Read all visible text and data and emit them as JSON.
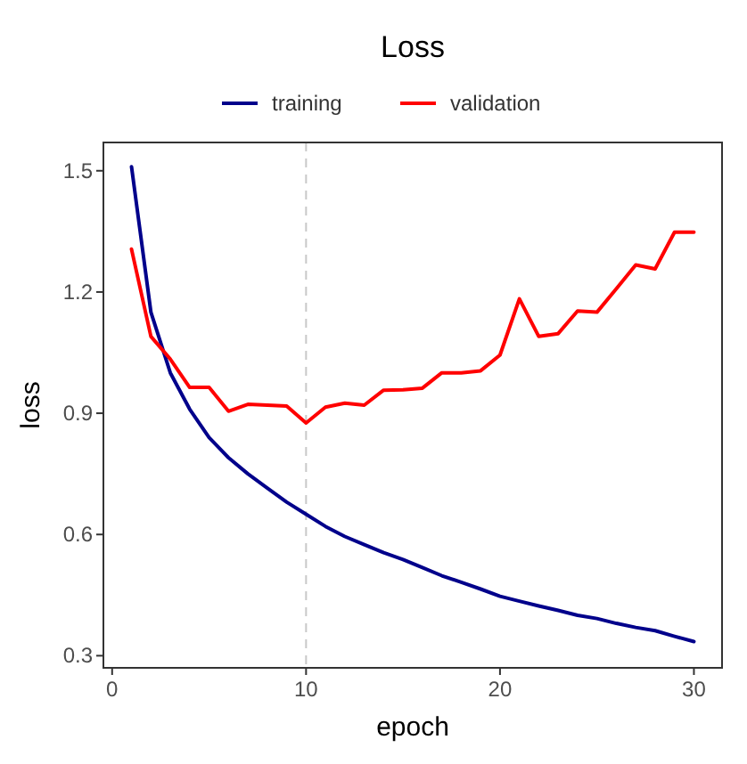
{
  "chart_data": {
    "type": "line",
    "title": "Loss",
    "xlabel": "epoch",
    "ylabel": "loss",
    "x": [
      1,
      2,
      3,
      4,
      5,
      6,
      7,
      8,
      9,
      10,
      11,
      12,
      13,
      14,
      15,
      16,
      17,
      18,
      19,
      20,
      21,
      22,
      23,
      24,
      25,
      26,
      27,
      28,
      29,
      30
    ],
    "series": [
      {
        "name": "training",
        "color": "#00008b",
        "values": [
          1.51,
          1.15,
          1.0,
          0.91,
          0.84,
          0.79,
          0.75,
          0.715,
          0.68,
          0.65,
          0.62,
          0.595,
          0.575,
          0.555,
          0.538,
          0.518,
          0.498,
          0.482,
          0.465,
          0.447,
          0.435,
          0.423,
          0.412,
          0.4,
          0.392,
          0.38,
          0.37,
          0.362,
          0.348,
          0.335
        ]
      },
      {
        "name": "validation",
        "color": "#ff0000",
        "values": [
          1.306,
          1.09,
          1.034,
          0.964,
          0.964,
          0.905,
          0.922,
          0.92,
          0.918,
          0.876,
          0.915,
          0.925,
          0.92,
          0.957,
          0.958,
          0.962,
          1.0,
          1.0,
          1.005,
          1.044,
          1.183,
          1.09,
          1.097,
          1.153,
          1.15,
          1.208,
          1.267,
          1.257,
          1.348,
          1.348
        ]
      }
    ],
    "xlim": [
      -0.45,
      31.45
    ],
    "xticks": [
      0,
      10,
      20,
      30
    ],
    "ylim": [
      0.27,
      1.57
    ],
    "yticks": [
      0.3,
      0.6,
      0.9,
      1.2,
      1.5
    ],
    "ref_lines": [
      {
        "axis": "x",
        "value": 10,
        "color": "#c8c8c8",
        "line_style": "dashed"
      }
    ],
    "legend": "top",
    "grid": false,
    "marker": "none",
    "line_style": "solid"
  }
}
